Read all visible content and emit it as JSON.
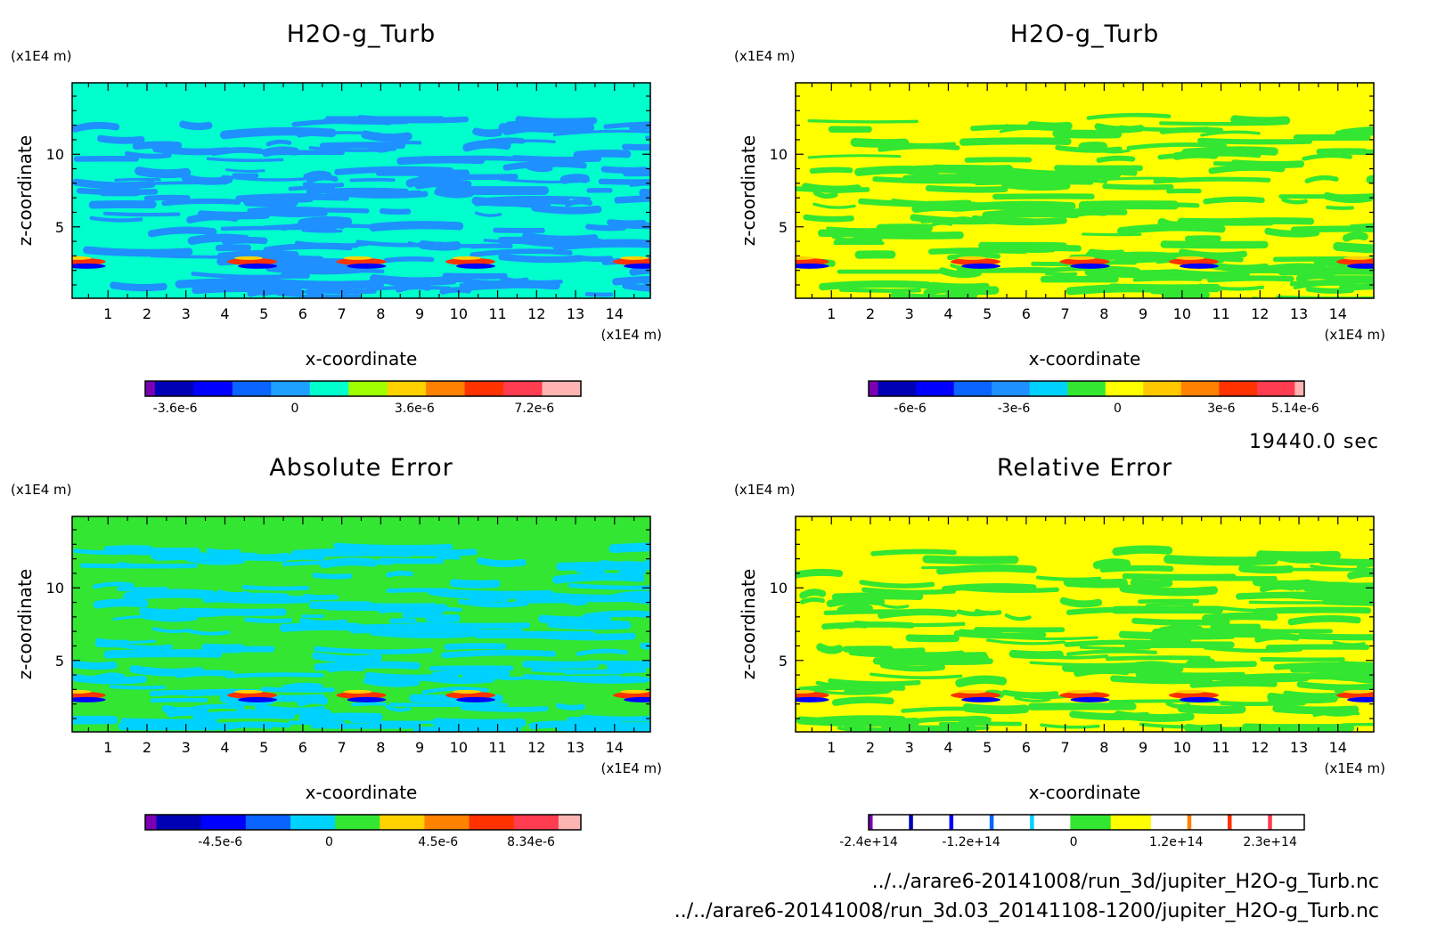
{
  "time_label": "19440.0 sec",
  "footer": {
    "file1": "../../arare6-20141008/run_3d/jupiter_H2O-g_Turb.nc",
    "file2": "../../arare6-20141008/run_3d.03_20141108-1200/jupiter_H2O-g_Turb.nc"
  },
  "chart_data": [
    {
      "type": "heatmap",
      "title": "H2O-g_Turb",
      "xlabel": "x-coordinate",
      "ylabel": "z-coordinate",
      "x_unit": "(x1E4 m)",
      "y_unit": "(x1E4 m)",
      "xlim": [
        0.08,
        14.92
      ],
      "ylim": [
        0.08,
        14.92
      ],
      "xticks": [
        "1",
        "2",
        "3",
        "4",
        "5",
        "6",
        "7",
        "8",
        "9",
        "10",
        "11",
        "12",
        "13",
        "14"
      ],
      "yticks": [
        "5",
        "10"
      ],
      "background_color": "#00ffcc",
      "pattern_color": "#1e90ff",
      "colorbar": {
        "colors": [
          "#7b00b4",
          "#0000b4",
          "#0000ff",
          "#0a64ff",
          "#1ea0ff",
          "#00ffcc",
          "#a0ff00",
          "#ffd200",
          "#ff8200",
          "#ff3200",
          "#ff3c50",
          "#ffb4b4"
        ],
        "widths": [
          1,
          4,
          4,
          4,
          4,
          4,
          4,
          4,
          4,
          4,
          4,
          4
        ],
        "tick_labels": [
          "-3.6e-6",
          "0",
          "3.6e-6",
          "7.2e-6"
        ],
        "tick_values": [
          -3.6e-06,
          0,
          3.6e-06,
          7.2e-06
        ],
        "range": [
          -4.5e-06,
          8.6e-06
        ]
      }
    },
    {
      "type": "heatmap",
      "title": "H2O-g_Turb",
      "xlabel": "x-coordinate",
      "ylabel": "z-coordinate",
      "x_unit": "(x1E4 m)",
      "y_unit": "(x1E4 m)",
      "xlim": [
        0.08,
        14.92
      ],
      "ylim": [
        0.08,
        14.92
      ],
      "xticks": [
        "1",
        "2",
        "3",
        "4",
        "5",
        "6",
        "7",
        "8",
        "9",
        "10",
        "11",
        "12",
        "13",
        "14"
      ],
      "yticks": [
        "5",
        "10"
      ],
      "background_color": "#ffff00",
      "pattern_color": "#32e632",
      "colorbar": {
        "colors": [
          "#7b00b4",
          "#0000b4",
          "#0000ff",
          "#0a64ff",
          "#1e90ff",
          "#00d2ff",
          "#32e632",
          "#ffff00",
          "#ffc800",
          "#ff8200",
          "#ff3200",
          "#ff3c50",
          "#ffb4b4"
        ],
        "widths": [
          1,
          4,
          4,
          4,
          4,
          4,
          4,
          4,
          4,
          4,
          4,
          4,
          1
        ],
        "tick_labels": [
          "-6e-6",
          "-3e-6",
          "0",
          "3e-6",
          "5.14e-6"
        ],
        "tick_values": [
          -6e-06,
          -3e-06,
          0,
          3e-06,
          5.14e-06
        ],
        "range": [
          -7.2e-06,
          5.4e-06
        ]
      }
    },
    {
      "type": "heatmap",
      "title": "Absolute Error",
      "xlabel": "x-coordinate",
      "ylabel": "z-coordinate",
      "x_unit": "(x1E4 m)",
      "y_unit": "(x1E4 m)",
      "xlim": [
        0.08,
        14.92
      ],
      "ylim": [
        0.08,
        14.92
      ],
      "xticks": [
        "1",
        "2",
        "3",
        "4",
        "5",
        "6",
        "7",
        "8",
        "9",
        "10",
        "11",
        "12",
        "13",
        "14"
      ],
      "yticks": [
        "5",
        "10"
      ],
      "background_color": "#32e632",
      "pattern_color": "#00d2ff",
      "colorbar": {
        "colors": [
          "#7b00b4",
          "#0000b4",
          "#0000ff",
          "#0a64ff",
          "#00d2ff",
          "#32e632",
          "#ffd200",
          "#ff8200",
          "#ff3200",
          "#ff3c50",
          "#ffb4b4"
        ],
        "widths": [
          1,
          4,
          4,
          4,
          4,
          4,
          4,
          4,
          4,
          4,
          2
        ],
        "tick_labels": [
          "-4.5e-6",
          "0",
          "4.5e-6",
          "8.34e-6"
        ],
        "tick_values": [
          -4.5e-06,
          0,
          4.5e-06,
          8.34e-06
        ],
        "range": [
          -7.6e-06,
          1.04e-05
        ]
      }
    },
    {
      "type": "heatmap",
      "title": "Relative Error",
      "xlabel": "x-coordinate",
      "ylabel": "z-coordinate",
      "x_unit": "(x1E4 m)",
      "y_unit": "(x1E4 m)",
      "xlim": [
        0.08,
        14.92
      ],
      "ylim": [
        0.08,
        14.92
      ],
      "xticks": [
        "1",
        "2",
        "3",
        "4",
        "5",
        "6",
        "7",
        "8",
        "9",
        "10",
        "11",
        "12",
        "13",
        "14"
      ],
      "yticks": [
        "5",
        "10"
      ],
      "background_color": "#ffff00",
      "pattern_color": "#32e632",
      "colorbar": {
        "colors": [
          "#7b00b4",
          "#ffffff",
          "#0000b4",
          "#ffffff",
          "#0000ff",
          "#ffffff",
          "#0a64ff",
          "#ffffff",
          "#00d2ff",
          "#ffffff",
          "#32e632",
          "#ffff00",
          "#ffffff",
          "#ff8200",
          "#ffffff",
          "#ff3200",
          "#ffffff",
          "#ff3c50",
          "#ffffff"
        ],
        "widths": [
          1,
          9,
          1,
          9,
          1,
          9,
          1,
          9,
          1,
          9,
          10,
          10,
          9,
          1,
          9,
          1,
          9,
          1,
          8
        ],
        "tick_labels": [
          "-2.4e+14",
          "-1.2e+14",
          "0",
          "1.2e+14",
          "2.3e+14"
        ],
        "tick_values": [
          -240000000000000.0,
          -120000000000000.0,
          0,
          120000000000000.0,
          230000000000000.0
        ],
        "range": [
          -240000000000000.0,
          270000000000000.0
        ]
      }
    }
  ]
}
